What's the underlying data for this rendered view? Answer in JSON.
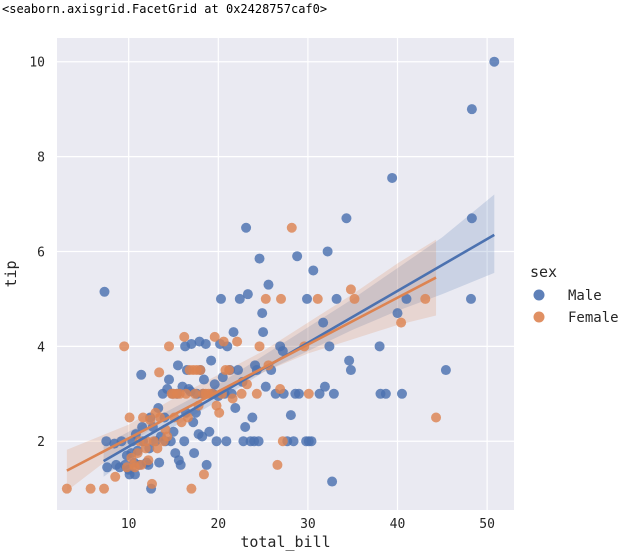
{
  "repr_text": "<seaborn.axisgrid.FacetGrid at 0x2428757caf0>",
  "colors": {
    "male": "#4c72b0",
    "female": "#dd8452",
    "plot_bg": "#eaeaf2",
    "grid": "#ffffff"
  },
  "chart_data": {
    "type": "scatter",
    "xlabel": "total_bill",
    "ylabel": "tip",
    "xlim": [
      2,
      53
    ],
    "ylim": [
      0.55,
      10.5
    ],
    "xticks": [
      10,
      20,
      30,
      40,
      50
    ],
    "yticks": [
      2,
      4,
      6,
      8,
      10
    ],
    "grid": true,
    "legend_title": "sex",
    "legend_position": "right",
    "series": [
      {
        "name": "Male",
        "color": "#4c72b0",
        "regression": {
          "x0": 7.2,
          "y0": 1.58,
          "x1": 50.8,
          "y1": 6.35
        },
        "ci_band": [
          [
            7.2,
            1.25,
            1.92
          ],
          [
            15,
            2.3,
            2.7
          ],
          [
            20,
            2.85,
            3.2
          ],
          [
            25,
            3.45,
            3.8
          ],
          [
            30,
            3.9,
            4.4
          ],
          [
            35,
            4.35,
            5.0
          ],
          [
            40,
            4.75,
            5.65
          ],
          [
            45,
            5.1,
            6.3
          ],
          [
            50.8,
            5.55,
            7.2
          ]
        ],
        "points": [
          [
            7.3,
            5.15
          ],
          [
            7.5,
            2.0
          ],
          [
            7.6,
            1.45
          ],
          [
            8.4,
            1.95
          ],
          [
            8.6,
            1.5
          ],
          [
            9.0,
            1.45
          ],
          [
            9.2,
            2.0
          ],
          [
            9.6,
            1.5
          ],
          [
            9.8,
            1.7
          ],
          [
            10.0,
            1.4
          ],
          [
            10.1,
            1.3
          ],
          [
            10.3,
            1.75
          ],
          [
            10.4,
            2.0
          ],
          [
            10.6,
            1.55
          ],
          [
            10.7,
            1.3
          ],
          [
            10.8,
            2.15
          ],
          [
            11.0,
            1.8
          ],
          [
            11.2,
            1.5
          ],
          [
            11.4,
            3.4
          ],
          [
            11.5,
            2.3
          ],
          [
            11.6,
            2.0
          ],
          [
            12.0,
            1.55
          ],
          [
            12.2,
            1.5
          ],
          [
            12.3,
            1.85
          ],
          [
            12.4,
            2.5
          ],
          [
            12.5,
            1.0
          ],
          [
            12.7,
            2.3
          ],
          [
            13.0,
            2.0
          ],
          [
            13.3,
            2.7
          ],
          [
            13.4,
            1.55
          ],
          [
            13.6,
            2.1
          ],
          [
            13.8,
            3.0
          ],
          [
            14.0,
            2.5
          ],
          [
            14.1,
            2.0
          ],
          [
            14.3,
            3.1
          ],
          [
            14.5,
            3.3
          ],
          [
            14.7,
            2.0
          ],
          [
            14.9,
            3.0
          ],
          [
            15.0,
            2.2
          ],
          [
            15.2,
            1.75
          ],
          [
            15.4,
            3.0
          ],
          [
            15.5,
            3.6
          ],
          [
            15.6,
            1.6
          ],
          [
            15.8,
            1.5
          ],
          [
            16.0,
            3.15
          ],
          [
            16.2,
            2.0
          ],
          [
            16.3,
            4.0
          ],
          [
            16.4,
            2.6
          ],
          [
            16.5,
            3.5
          ],
          [
            16.7,
            3.1
          ],
          [
            16.9,
            3.05
          ],
          [
            17.0,
            4.05
          ],
          [
            17.2,
            2.4
          ],
          [
            17.3,
            1.75
          ],
          [
            17.5,
            2.6
          ],
          [
            17.6,
            3.0
          ],
          [
            17.8,
            2.15
          ],
          [
            17.9,
            4.1
          ],
          [
            18.0,
            3.5
          ],
          [
            18.2,
            2.1
          ],
          [
            18.3,
            3.0
          ],
          [
            18.4,
            3.3
          ],
          [
            18.6,
            4.05
          ],
          [
            18.7,
            1.5
          ],
          [
            19.0,
            2.2
          ],
          [
            19.2,
            3.7
          ],
          [
            19.4,
            3.0
          ],
          [
            19.6,
            3.2
          ],
          [
            19.8,
            2.0
          ],
          [
            20.0,
            2.95
          ],
          [
            20.2,
            4.05
          ],
          [
            20.3,
            5.0
          ],
          [
            20.5,
            3.35
          ],
          [
            20.7,
            3.0
          ],
          [
            20.9,
            2.0
          ],
          [
            21.0,
            4.0
          ],
          [
            21.3,
            3.5
          ],
          [
            21.5,
            3.0
          ],
          [
            21.7,
            4.3
          ],
          [
            21.9,
            2.7
          ],
          [
            22.2,
            3.5
          ],
          [
            22.4,
            5.0
          ],
          [
            22.7,
            3.25
          ],
          [
            22.8,
            2.0
          ],
          [
            23.0,
            2.3
          ],
          [
            23.1,
            6.5
          ],
          [
            23.3,
            5.1
          ],
          [
            23.6,
            2.0
          ],
          [
            23.8,
            2.5
          ],
          [
            24.0,
            2.0
          ],
          [
            24.1,
            3.6
          ],
          [
            24.3,
            3.5
          ],
          [
            24.5,
            2.0
          ],
          [
            24.6,
            5.85
          ],
          [
            24.9,
            4.7
          ],
          [
            25.0,
            4.3
          ],
          [
            25.3,
            3.15
          ],
          [
            25.6,
            5.3
          ],
          [
            25.9,
            3.5
          ],
          [
            26.4,
            3.0
          ],
          [
            26.9,
            4.0
          ],
          [
            27.2,
            3.9
          ],
          [
            27.3,
            3.0
          ],
          [
            27.7,
            2.0
          ],
          [
            28.1,
            2.55
          ],
          [
            28.4,
            2.0
          ],
          [
            28.6,
            3.0
          ],
          [
            28.8,
            5.9
          ],
          [
            29.0,
            3.0
          ],
          [
            29.8,
            2.0
          ],
          [
            29.9,
            5.0
          ],
          [
            30.1,
            2.0
          ],
          [
            30.4,
            2.0
          ],
          [
            30.6,
            5.6
          ],
          [
            31.3,
            3.0
          ],
          [
            31.7,
            4.5
          ],
          [
            31.9,
            3.15
          ],
          [
            32.2,
            6.0
          ],
          [
            32.4,
            4.0
          ],
          [
            32.7,
            1.15
          ],
          [
            32.9,
            3.0
          ],
          [
            33.2,
            5.0
          ],
          [
            34.3,
            6.7
          ],
          [
            34.6,
            3.7
          ],
          [
            34.8,
            3.5
          ],
          [
            38.0,
            4.0
          ],
          [
            38.1,
            3.0
          ],
          [
            38.7,
            3.0
          ],
          [
            39.4,
            7.55
          ],
          [
            40.0,
            4.7
          ],
          [
            40.5,
            3.0
          ],
          [
            41.0,
            5.0
          ],
          [
            45.4,
            3.5
          ],
          [
            48.2,
            5.0
          ],
          [
            48.3,
            9.0
          ],
          [
            48.3,
            6.7
          ],
          [
            50.8,
            10.0
          ]
        ]
      },
      {
        "name": "Female",
        "color": "#dd8452",
        "regression": {
          "x0": 3.1,
          "y0": 1.38,
          "x1": 44.3,
          "y1": 5.45
        },
        "ci_band": [
          [
            3.1,
            0.95,
            1.82
          ],
          [
            10,
            1.95,
            2.35
          ],
          [
            15,
            2.55,
            2.9
          ],
          [
            20,
            3.0,
            3.4
          ],
          [
            25,
            3.45,
            3.9
          ],
          [
            30,
            3.85,
            4.5
          ],
          [
            35,
            4.15,
            5.1
          ],
          [
            40,
            4.45,
            5.75
          ],
          [
            44.3,
            4.65,
            6.25
          ]
        ],
        "points": [
          [
            3.1,
            1.0
          ],
          [
            5.75,
            1.0
          ],
          [
            7.25,
            1.0
          ],
          [
            8.5,
            1.25
          ],
          [
            9.5,
            4.0
          ],
          [
            9.8,
            1.45
          ],
          [
            10.1,
            2.5
          ],
          [
            10.3,
            1.65
          ],
          [
            10.6,
            1.5
          ],
          [
            10.7,
            1.45
          ],
          [
            11.0,
            1.75
          ],
          [
            11.2,
            2.0
          ],
          [
            11.4,
            1.5
          ],
          [
            11.6,
            2.5
          ],
          [
            11.9,
            1.85
          ],
          [
            12.0,
            2.0
          ],
          [
            12.2,
            1.6
          ],
          [
            12.4,
            2.45
          ],
          [
            12.6,
            1.1
          ],
          [
            12.8,
            2.0
          ],
          [
            13.0,
            2.6
          ],
          [
            13.2,
            1.85
          ],
          [
            13.4,
            3.45
          ],
          [
            13.5,
            2.5
          ],
          [
            13.9,
            2.0
          ],
          [
            14.1,
            2.25
          ],
          [
            14.3,
            2.1
          ],
          [
            14.5,
            4.0
          ],
          [
            14.8,
            3.0
          ],
          [
            15.0,
            3.0
          ],
          [
            15.1,
            2.5
          ],
          [
            15.4,
            3.0
          ],
          [
            15.7,
            3.0
          ],
          [
            15.9,
            2.4
          ],
          [
            16.2,
            4.2
          ],
          [
            16.4,
            3.0
          ],
          [
            16.6,
            2.5
          ],
          [
            16.8,
            3.5
          ],
          [
            17.0,
            1.0
          ],
          [
            17.2,
            3.5
          ],
          [
            17.4,
            3.0
          ],
          [
            17.6,
            3.5
          ],
          [
            17.8,
            2.75
          ],
          [
            18.0,
            3.5
          ],
          [
            18.3,
            3.0
          ],
          [
            18.4,
            1.3
          ],
          [
            18.6,
            3.0
          ],
          [
            18.9,
            3.0
          ],
          [
            19.3,
            3.0
          ],
          [
            19.6,
            4.2
          ],
          [
            19.8,
            2.75
          ],
          [
            20.1,
            2.6
          ],
          [
            20.4,
            3.0
          ],
          [
            20.6,
            4.1
          ],
          [
            20.8,
            3.5
          ],
          [
            21.2,
            3.5
          ],
          [
            21.6,
            2.9
          ],
          [
            22.1,
            4.1
          ],
          [
            22.6,
            3.0
          ],
          [
            23.2,
            3.2
          ],
          [
            24.3,
            3.0
          ],
          [
            24.6,
            4.0
          ],
          [
            25.3,
            5.0
          ],
          [
            25.6,
            3.6
          ],
          [
            26.6,
            1.5
          ],
          [
            26.9,
            3.1
          ],
          [
            27.0,
            5.0
          ],
          [
            27.2,
            2.0
          ],
          [
            28.2,
            6.5
          ],
          [
            29.6,
            4.0
          ],
          [
            30.1,
            3.0
          ],
          [
            31.1,
            5.0
          ],
          [
            34.8,
            5.2
          ],
          [
            35.2,
            5.0
          ],
          [
            40.4,
            4.5
          ],
          [
            43.1,
            5.0
          ],
          [
            44.3,
            2.5
          ]
        ]
      }
    ]
  }
}
